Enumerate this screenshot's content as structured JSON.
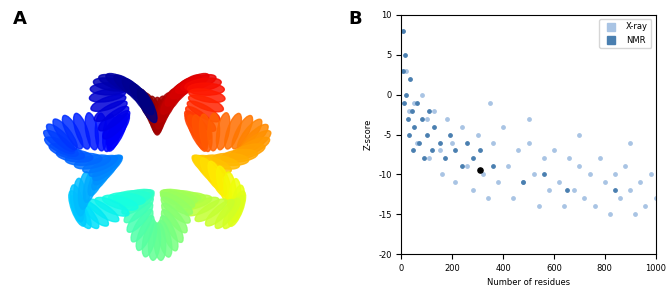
{
  "panel_labels": [
    "A",
    "B"
  ],
  "chart_data": {
    "type": "scatter",
    "xlabel": "Number of residues",
    "ylabel": "Z-score",
    "xlim": [
      0,
      1000
    ],
    "ylim": [
      -20,
      10
    ],
    "xticks": [
      0,
      200,
      400,
      600,
      800,
      1000
    ],
    "yticks": [
      -20,
      -15,
      -10,
      -5,
      0,
      5,
      10
    ],
    "grid": false,
    "legend": "upper right",
    "series": [
      {
        "name": "X-ray",
        "color": "#a9c4e4",
        "marker": "circle",
        "x": [
          20,
          30,
          50,
          60,
          80,
          100,
          110,
          130,
          150,
          160,
          180,
          200,
          210,
          240,
          260,
          280,
          300,
          320,
          340,
          360,
          380,
          400,
          420,
          440,
          460,
          480,
          500,
          520,
          540,
          560,
          580,
          600,
          620,
          640,
          660,
          680,
          700,
          720,
          740,
          760,
          780,
          800,
          820,
          840,
          860,
          880,
          900,
          920,
          940,
          960,
          980,
          1000,
          350,
          500,
          700,
          900
        ],
        "values": [
          3,
          -2,
          -1,
          -6,
          0,
          -3,
          -8,
          -2,
          -7,
          -10,
          -3,
          -6,
          -11,
          -4,
          -9,
          -12,
          -5,
          -10,
          -13,
          -6,
          -11,
          -4,
          -9,
          -13,
          -7,
          -11,
          -6,
          -10,
          -14,
          -8,
          -12,
          -7,
          -11,
          -14,
          -8,
          -12,
          -9,
          -13,
          -10,
          -14,
          -8,
          -11,
          -15,
          -10,
          -13,
          -9,
          -12,
          -15,
          -11,
          -14,
          -10,
          -13,
          -1,
          -3,
          -5,
          -6
        ]
      },
      {
        "name": "NMR",
        "color": "#4a7fb0",
        "marker": "circle",
        "x": [
          5,
          5,
          10,
          15,
          20,
          25,
          30,
          35,
          40,
          45,
          50,
          60,
          70,
          80,
          90,
          100,
          110,
          120,
          130,
          150,
          170,
          190,
          210,
          240,
          260,
          280,
          310,
          360,
          480,
          560,
          650,
          840
        ],
        "values": [
          8,
          3,
          -1,
          5,
          0,
          -3,
          -5,
          2,
          -2,
          -7,
          -4,
          -1,
          -6,
          -3,
          -8,
          -5,
          -2,
          -7,
          -4,
          -6,
          -8,
          -5,
          -7,
          -9,
          -6,
          -8,
          -7,
          -9,
          -11,
          -10,
          -12,
          -12
        ]
      }
    ],
    "highlight": {
      "x": 310,
      "y": -9.5,
      "color": "#000000"
    }
  }
}
